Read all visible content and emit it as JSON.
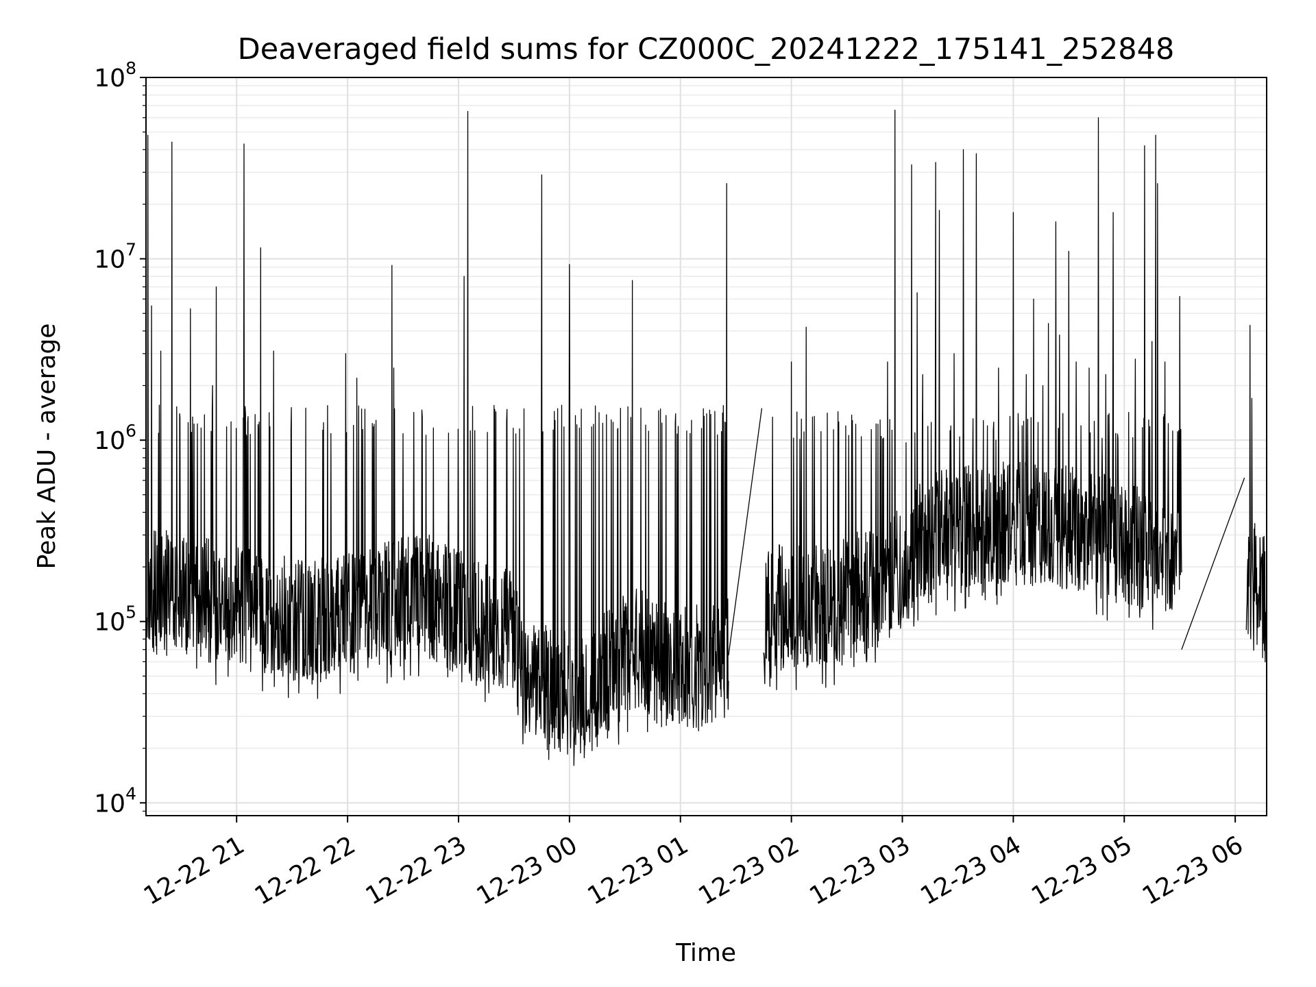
{
  "chart_data": {
    "type": "line",
    "title": "Deaveraged field sums for CZ000C_20241222_175141_252848",
    "xlabel": "Time",
    "ylabel": "Peak ADU - average",
    "y_scale": "log",
    "ylim": [
      8500,
      100000000
    ],
    "y_ticks": [
      {
        "value": 10000,
        "base": "10",
        "exp": "4"
      },
      {
        "value": 100000,
        "base": "10",
        "exp": "5"
      },
      {
        "value": 1000000,
        "base": "10",
        "exp": "6"
      },
      {
        "value": 10000000,
        "base": "10",
        "exp": "7"
      },
      {
        "value": 100000000,
        "base": "10",
        "exp": "8"
      }
    ],
    "xlim": [
      "2024-12-22 20:11",
      "2024-12-23 06:17"
    ],
    "x_ticks": [
      {
        "value": "2024-12-22 21:00",
        "label": "12-22 21"
      },
      {
        "value": "2024-12-22 22:00",
        "label": "12-22 22"
      },
      {
        "value": "2024-12-22 23:00",
        "label": "12-22 23"
      },
      {
        "value": "2024-12-23 00:00",
        "label": "12-23 00"
      },
      {
        "value": "2024-12-23 01:00",
        "label": "12-23 01"
      },
      {
        "value": "2024-12-23 02:00",
        "label": "12-23 02"
      },
      {
        "value": "2024-12-23 03:00",
        "label": "12-23 03"
      },
      {
        "value": "2024-12-23 04:00",
        "label": "12-23 04"
      },
      {
        "value": "2024-12-23 05:00",
        "label": "12-23 05"
      },
      {
        "value": "2024-12-23 06:00",
        "label": "12-23 06"
      }
    ],
    "grid": true,
    "line_color": "#000000",
    "segments": [
      {
        "start": "2024-12-22 20:11",
        "end": "2024-12-23 01:26",
        "baseline": [
          [
            0,
            150000
          ],
          [
            1.5,
            100000
          ],
          [
            2.5,
            140000
          ],
          [
            3.0,
            100000
          ],
          [
            3.3,
            90000
          ],
          [
            3.4,
            45000
          ],
          [
            3.9,
            40000
          ],
          [
            4.4,
            70000
          ],
          [
            4.8,
            60000
          ],
          [
            5.0,
            55000
          ],
          [
            5.25,
            70000
          ]
        ],
        "upper": 1300000
      },
      {
        "start": "2024-12-23 01:45",
        "end": "2024-12-23 05:31",
        "baseline": [
          [
            0,
            120000
          ],
          [
            0.5,
            120000
          ],
          [
            1.0,
            150000
          ],
          [
            1.5,
            300000
          ],
          [
            2.0,
            350000
          ],
          [
            2.5,
            350000
          ],
          [
            3.0,
            300000
          ],
          [
            3.5,
            250000
          ],
          [
            3.77,
            250000
          ]
        ],
        "upper": 1200000
      },
      {
        "start": "2024-12-23 06:06",
        "end": "2024-12-23 06:17",
        "baseline": [
          [
            0,
            150000
          ],
          [
            0.18,
            140000
          ]
        ],
        "upper": 300000
      }
    ],
    "bridges": [
      {
        "from": [
          "2024-12-23 01:26",
          65000
        ],
        "to": [
          "2024-12-23 01:44",
          1500000
        ]
      },
      {
        "from": [
          "2024-12-23 05:31",
          70000
        ],
        "to": [
          "2024-12-23 06:05",
          620000
        ]
      }
    ],
    "spikes": [
      [
        "2024-12-22 20:12",
        48000000
      ],
      [
        "2024-12-22 20:14",
        5500000
      ],
      [
        "2024-12-22 20:19",
        3100000
      ],
      [
        "2024-12-22 20:25",
        44000000
      ],
      [
        "2024-12-22 20:35",
        5300000
      ],
      [
        "2024-12-22 20:49",
        7000000
      ],
      [
        "2024-12-22 20:47",
        2000000
      ],
      [
        "2024-12-22 21:04",
        43000000
      ],
      [
        "2024-12-22 21:13",
        11500000
      ],
      [
        "2024-12-22 21:20",
        3100000
      ],
      [
        "2024-12-22 21:59",
        3000000
      ],
      [
        "2024-12-22 22:05",
        2200000
      ],
      [
        "2024-12-22 22:24",
        9200000
      ],
      [
        "2024-12-22 22:25",
        2500000
      ],
      [
        "2024-12-22 23:03",
        8000000
      ],
      [
        "2024-12-22 23:05",
        65000000
      ],
      [
        "2024-12-22 23:45",
        29000000
      ],
      [
        "2024-12-23 00:00",
        9300000
      ],
      [
        "2024-12-23 00:34",
        7600000
      ],
      [
        "2024-12-23 01:25",
        26000000
      ],
      [
        "2024-12-23 02:00",
        2700000
      ],
      [
        "2024-12-23 02:08",
        4200000
      ],
      [
        "2024-12-23 02:52",
        2700000
      ],
      [
        "2024-12-23 02:56",
        66000000
      ],
      [
        "2024-12-23 03:05",
        33000000
      ],
      [
        "2024-12-23 03:08",
        6500000
      ],
      [
        "2024-12-23 03:11",
        2300000
      ],
      [
        "2024-12-23 03:18",
        34000000
      ],
      [
        "2024-12-23 03:20",
        18500000
      ],
      [
        "2024-12-23 03:28",
        3000000
      ],
      [
        "2024-12-23 03:33",
        40000000
      ],
      [
        "2024-12-23 03:40",
        38000000
      ],
      [
        "2024-12-23 03:52",
        2500000
      ],
      [
        "2024-12-23 04:00",
        18000000
      ],
      [
        "2024-12-23 04:07",
        2300000
      ],
      [
        "2024-12-23 04:11",
        6000000
      ],
      [
        "2024-12-23 04:16",
        2000000
      ],
      [
        "2024-12-23 04:19",
        4400000
      ],
      [
        "2024-12-23 04:23",
        16000000
      ],
      [
        "2024-12-23 04:25",
        3800000
      ],
      [
        "2024-12-23 04:30",
        11000000
      ],
      [
        "2024-12-23 04:34",
        2700000
      ],
      [
        "2024-12-23 04:41",
        2500000
      ],
      [
        "2024-12-23 04:46",
        60000000
      ],
      [
        "2024-12-23 04:50",
        2300000
      ],
      [
        "2024-12-23 04:54",
        18000000
      ],
      [
        "2024-12-23 05:06",
        2800000
      ],
      [
        "2024-12-23 05:11",
        42000000
      ],
      [
        "2024-12-23 05:15",
        3500000
      ],
      [
        "2024-12-23 05:17",
        48000000
      ],
      [
        "2024-12-23 05:18",
        26000000
      ],
      [
        "2024-12-23 05:22",
        2700000
      ],
      [
        "2024-12-23 05:30",
        6200000
      ],
      [
        "2024-12-23 06:08",
        4300000
      ],
      [
        "2024-12-23 06:09",
        1700000
      ]
    ]
  }
}
